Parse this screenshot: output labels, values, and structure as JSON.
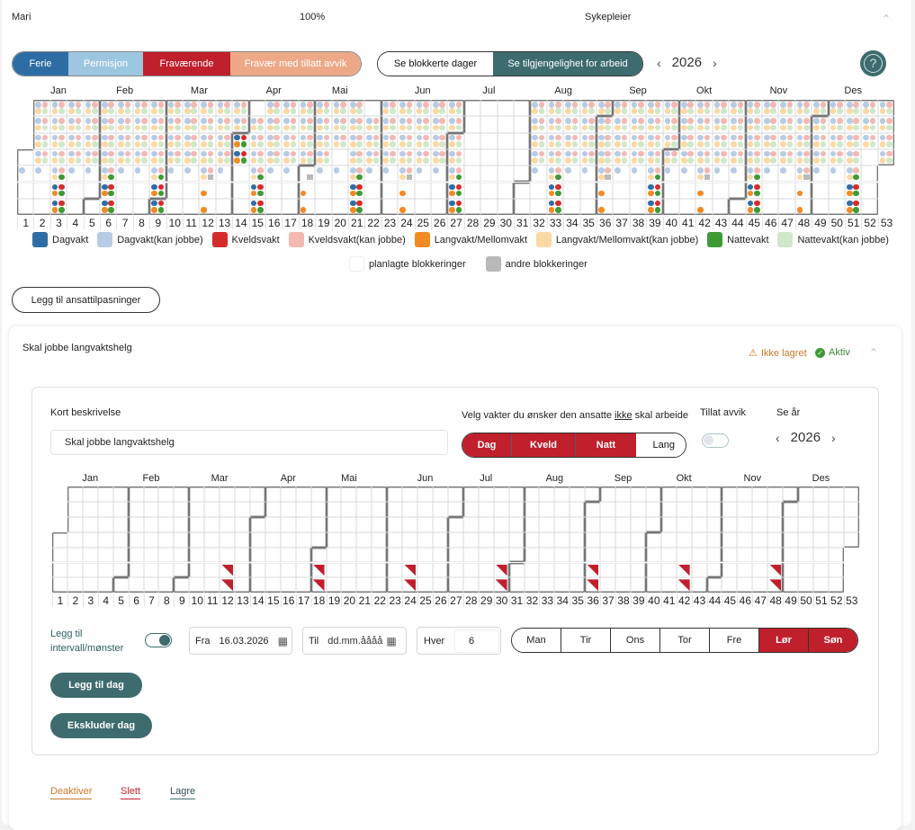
{
  "header": {
    "name": "Mari",
    "percent": "100%",
    "role": "Sykepleier"
  },
  "absence_tabs": [
    {
      "label": "Ferie",
      "color": "#2e6da4"
    },
    {
      "label": "Permisjon",
      "color": "#9dc6e0"
    },
    {
      "label": "Fraværende",
      "color": "#c01f2c"
    },
    {
      "label": "Fravær med tillatt avvik",
      "color": "#eda987"
    }
  ],
  "view_toggle": {
    "blocked": "Se blokkerte dager",
    "availability": "Se tilgjengelighet for arbeid",
    "active": "availability"
  },
  "year": "2026",
  "months": [
    "Jan",
    "Feb",
    "Mar",
    "Apr",
    "Mai",
    "Jun",
    "Jul",
    "Aug",
    "Sep",
    "Okt",
    "Nov",
    "Des"
  ],
  "weekdays": [
    "Man",
    "Tir",
    "Ons",
    "Tor",
    "Fre",
    "Lør",
    "Søn"
  ],
  "availability": {
    "full_weekend_weeks": [
      3,
      6,
      9,
      15,
      21,
      27,
      33,
      39,
      45,
      51
    ],
    "long_shift_weekend_weeks": [
      12,
      18,
      24,
      36,
      42,
      48
    ],
    "vacation_weeks": [
      28,
      29,
      30,
      31
    ],
    "holidays": [
      "2026-01-01",
      "2026-04-03",
      "2026-04-06",
      "2026-05-14",
      "2026-05-25",
      "2026-12-24",
      "2026-12-25"
    ],
    "full_days": [
      "2026-04-01",
      "2026-04-02"
    ],
    "blocked_only_days": [
      "2026-05-01"
    ]
  },
  "legend": [
    {
      "label": "Dagvakt",
      "color": "#2e6da4"
    },
    {
      "label": "Dagvakt(kan jobbe)",
      "color": "#b7cce4"
    },
    {
      "label": "Kveldsvakt",
      "color": "#d62b2b"
    },
    {
      "label": "Kveldsvakt(kan jobbe)",
      "color": "#f4b8b3"
    },
    {
      "label": "Langvakt/Mellomvakt",
      "color": "#f28a25"
    },
    {
      "label": "Langvakt/Mellomvakt(kan jobbe)",
      "color": "#fbd9a5"
    },
    {
      "label": "Nattevakt",
      "color": "#3e9a35"
    },
    {
      "label": "Nattevakt(kan jobbe)",
      "color": "#cfe8c9"
    }
  ],
  "legend2": [
    {
      "label": "planlagte blokkeringer",
      "color": "#ffffff"
    },
    {
      "label": "andre blokkeringer",
      "color": "#b9b9b9"
    }
  ],
  "add_adjustments": "Legg til ansattilpasninger",
  "rule": {
    "title": "Skal jobbe langvaktshelg",
    "not_saved": "Ikke lagret",
    "active": "Aktiv",
    "desc_label": "Kort beskrivelse",
    "desc_value": "Skal jobbe langvaktshelg",
    "shift_label_pre": "Velg vakter du ønsker den ansatte ",
    "shift_label_em": "ikke",
    "shift_label_post": " skal arbeide",
    "shifts": [
      {
        "label": "Dag",
        "selected": true
      },
      {
        "label": "Kveld",
        "selected": true
      },
      {
        "label": "Natt",
        "selected": true
      },
      {
        "label": "Lang",
        "selected": false
      }
    ],
    "allow_dev_label": "Tillat avvik",
    "allow_dev": false,
    "see_year_label": "Se år",
    "year": "2026",
    "marked_weeks": [
      12,
      18,
      24,
      30,
      36,
      42,
      48
    ],
    "interval_label": "Legg til intervall/mønster",
    "interval_on": true,
    "from_label": "Fra",
    "from_value": "16.03.2026",
    "to_label": "Til",
    "to_placeholder": "dd.mm.åååå",
    "every_label": "Hver",
    "every_value": "6",
    "days": [
      {
        "label": "Man",
        "selected": false
      },
      {
        "label": "Tir",
        "selected": false
      },
      {
        "label": "Ons",
        "selected": false
      },
      {
        "label": "Tor",
        "selected": false
      },
      {
        "label": "Fre",
        "selected": false
      },
      {
        "label": "Lør",
        "selected": true
      },
      {
        "label": "Søn",
        "selected": true
      }
    ],
    "add_day": "Legg til dag",
    "exclude_day": "Ekskluder dag",
    "deactivate": "Deaktiver",
    "delete": "Slett",
    "save": "Lagre"
  }
}
